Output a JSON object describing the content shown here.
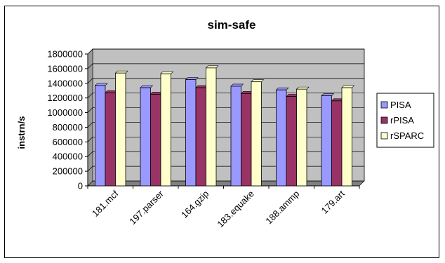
{
  "chart_data": {
    "type": "bar",
    "title": "sim-safe",
    "xlabel": "",
    "ylabel": "instrn/s",
    "ylim": [
      0,
      1800000
    ],
    "ytick_step": 200000,
    "grid": true,
    "legend_position": "right",
    "categories": [
      "181.mcf",
      "197.parser",
      "164.gzip",
      "183.equake",
      "188.ammp",
      "179.art"
    ],
    "series": [
      {
        "name": "PISA",
        "color": "#9999ff",
        "values": [
          1370000,
          1340000,
          1450000,
          1360000,
          1310000,
          1230000
        ]
      },
      {
        "name": "rPISA",
        "color": "#993366",
        "values": [
          1270000,
          1250000,
          1340000,
          1260000,
          1220000,
          1160000
        ]
      },
      {
        "name": "rSPARC",
        "color": "#ffffcc",
        "values": [
          1540000,
          1530000,
          1610000,
          1420000,
          1320000,
          1340000
        ]
      }
    ],
    "plot_background": "#c0c0c0"
  }
}
